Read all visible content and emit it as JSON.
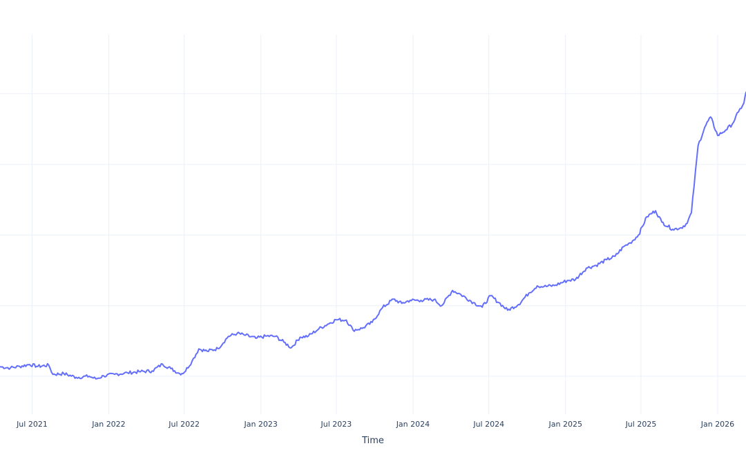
{
  "chart_data": {
    "type": "line",
    "title": "",
    "xlabel": "Time",
    "ylabel": "",
    "x_ticks": [
      {
        "date": "2021-07-01",
        "label": "Jul 2021"
      },
      {
        "date": "2022-01-01",
        "label": "Jan 2022"
      },
      {
        "date": "2022-07-01",
        "label": "Jul 2022"
      },
      {
        "date": "2023-01-01",
        "label": "Jan 2023"
      },
      {
        "date": "2023-07-01",
        "label": "Jul 2023"
      },
      {
        "date": "2024-01-01",
        "label": "Jan 2024"
      },
      {
        "date": "2024-07-01",
        "label": "Jul 2024"
      },
      {
        "date": "2025-01-01",
        "label": "Jan 2025"
      },
      {
        "date": "2025-07-01",
        "label": "Jul 2025"
      },
      {
        "date": "2026-01-01",
        "label": "Jan 2026"
      }
    ],
    "xlim": [
      "2021-04-15",
      "2026-03-10"
    ],
    "ylim": [
      0,
      100
    ],
    "y_gridlines": [
      10,
      28.6,
      47.2,
      65.8,
      84.4
    ],
    "grid": true,
    "legend": "none",
    "series": [
      {
        "color": "#636efa",
        "x": [
          "2021-04-15",
          "2021-05-10",
          "2021-06-01",
          "2021-06-25",
          "2021-07-15",
          "2021-08-10",
          "2021-08-20",
          "2021-09-15",
          "2021-10-15",
          "2021-11-15",
          "2021-12-01",
          "2021-12-20",
          "2022-01-15",
          "2022-02-15",
          "2022-03-15",
          "2022-04-15",
          "2022-05-10",
          "2022-05-30",
          "2022-06-20",
          "2022-07-01",
          "2022-07-20",
          "2022-08-05",
          "2022-08-25",
          "2022-09-20",
          "2022-10-15",
          "2022-11-05",
          "2022-11-25",
          "2022-12-20",
          "2023-01-15",
          "2023-02-05",
          "2023-02-25",
          "2023-03-15",
          "2023-04-05",
          "2023-04-25",
          "2023-05-20",
          "2023-06-10",
          "2023-06-30",
          "2023-07-25",
          "2023-08-10",
          "2023-09-01",
          "2023-09-25",
          "2023-10-20",
          "2023-11-15",
          "2023-12-05",
          "2023-12-25",
          "2024-01-20",
          "2024-02-20",
          "2024-03-10",
          "2024-04-05",
          "2024-04-25",
          "2024-05-25",
          "2024-06-15",
          "2024-07-05",
          "2024-07-25",
          "2024-08-15",
          "2024-09-10",
          "2024-10-05",
          "2024-10-25",
          "2024-11-10",
          "2024-12-05",
          "2025-01-05",
          "2025-01-25",
          "2025-02-20",
          "2025-03-15",
          "2025-04-10",
          "2025-04-30",
          "2025-05-20",
          "2025-06-05",
          "2025-06-25",
          "2025-07-15",
          "2025-08-05",
          "2025-08-20",
          "2025-09-15",
          "2025-10-05",
          "2025-10-20",
          "2025-10-30",
          "2025-11-15",
          "2025-12-01",
          "2025-12-15",
          "2026-01-01",
          "2026-01-20",
          "2026-02-05",
          "2026-02-20",
          "2026-03-05",
          "2026-03-10"
        ],
        "y": [
          12.5,
          12.2,
          12.6,
          13.1,
          12.6,
          12.9,
          10.5,
          10.7,
          9.7,
          10.0,
          9.3,
          10.1,
          10.5,
          10.9,
          11.2,
          11.4,
          13.2,
          12.0,
          10.7,
          11.0,
          14.0,
          17.2,
          16.6,
          17.3,
          20.5,
          21.3,
          20.8,
          20.0,
          20.6,
          20.5,
          19.0,
          17.5,
          20.3,
          20.6,
          22.5,
          23.7,
          24.9,
          24.8,
          22.2,
          22.6,
          24.2,
          28.1,
          30.3,
          29.2,
          30.0,
          30.0,
          30.2,
          28.6,
          32.6,
          31.5,
          29.4,
          28.2,
          31.2,
          29.4,
          27.4,
          28.9,
          31.9,
          33.8,
          33.6,
          33.9,
          35.2,
          35.5,
          38.5,
          39.2,
          40.7,
          41.6,
          44.1,
          45.1,
          47.2,
          52.0,
          53.6,
          50.6,
          48.7,
          49.1,
          50.3,
          53.1,
          70.7,
          75.6,
          78.3,
          73.4,
          74.8,
          76.4,
          79.6,
          82.0,
          84.8
        ]
      }
    ]
  }
}
